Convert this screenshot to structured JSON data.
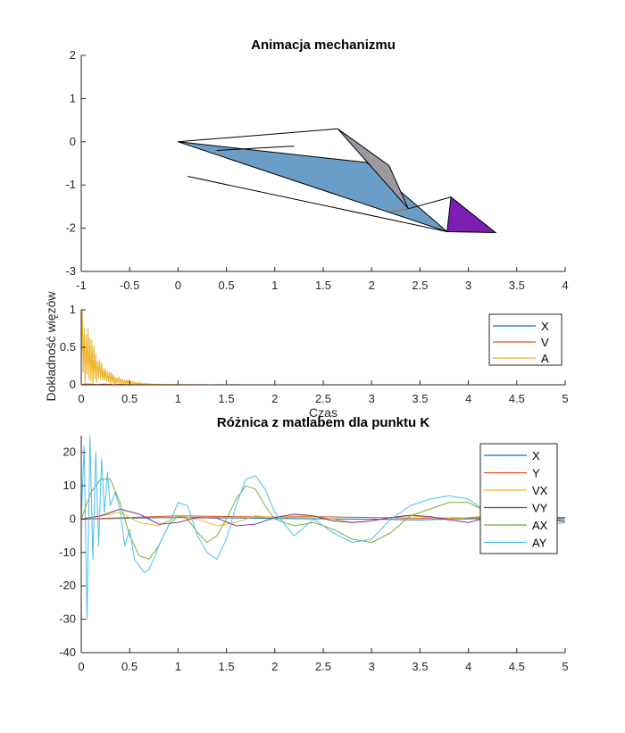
{
  "chart_data": [
    {
      "type": "diagram",
      "title": "Animacja mechanizmu",
      "xlim": [
        -1,
        4
      ],
      "ylim": [
        -3,
        2
      ],
      "xticks": [
        "-1",
        "-0.5",
        "0",
        "0.5",
        "1",
        "1.5",
        "2",
        "2.5",
        "3",
        "3.5",
        "4"
      ],
      "yticks": [
        "2",
        "1",
        "0",
        "-1",
        "-2",
        "-3"
      ],
      "polygons": [
        {
          "name": "main-link",
          "fill": "#6b9ec6",
          "points": [
            [
              0,
              0
            ],
            [
              2.78,
              -2.08
            ],
            [
              1.95,
              -0.48
            ]
          ]
        },
        {
          "name": "rocker-link",
          "fill": "#9b9aa0",
          "points": [
            [
              1.65,
              0.3
            ],
            [
              2.18,
              -0.55
            ],
            [
              2.38,
              -1.55
            ]
          ]
        },
        {
          "name": "end-link",
          "fill": "#7e1fb3",
          "points": [
            [
              2.78,
              -2.08
            ],
            [
              2.82,
              -1.28
            ],
            [
              3.28,
              -2.1
            ]
          ]
        }
      ],
      "lines": [
        {
          "name": "coupler-upper",
          "color": "#000000",
          "points": [
            [
              0,
              0
            ],
            [
              1.65,
              0.3
            ]
          ]
        },
        {
          "name": "coupler-short",
          "color": "#000000",
          "points": [
            [
              0.4,
              -0.2
            ],
            [
              1.2,
              -0.1
            ]
          ]
        },
        {
          "name": "lower-rod",
          "color": "#000000",
          "points": [
            [
              0.1,
              -0.8
            ],
            [
              2.78,
              -2.08
            ]
          ]
        },
        {
          "name": "connector",
          "color": "#000000",
          "points": [
            [
              2.38,
              -1.55
            ],
            [
              2.82,
              -1.28
            ]
          ]
        },
        {
          "name": "orange-link",
          "color": "#d95319",
          "points": [
            [
              2.2,
              -1.62
            ],
            [
              2.38,
              -1.55
            ]
          ]
        }
      ]
    },
    {
      "type": "line",
      "title": "",
      "xlabel": "Czas",
      "ylabel": "Dokładność więzów",
      "xlim": [
        0,
        5
      ],
      "ylim": [
        0,
        1
      ],
      "xticks": [
        "0",
        "0.5",
        "1",
        "1.5",
        "2",
        "2.5",
        "3",
        "3.5",
        "4",
        "4.5",
        "5"
      ],
      "yticks": [
        "1",
        "0.5",
        "0"
      ],
      "legend_position": "top-right",
      "series": [
        {
          "name": "X",
          "color": "#0072bd",
          "profile": {
            "amp": 0.002,
            "decay": 1.5,
            "freq": 3,
            "noise": 0.0
          }
        },
        {
          "name": "V",
          "color": "#d95319",
          "profile": {
            "amp": 0.01,
            "decay": 1.5,
            "freq": 3,
            "noise": 0.005
          }
        },
        {
          "name": "A",
          "color": "#edb120",
          "profile": {
            "amp": 0.85,
            "decay": 6.0,
            "freq": 25,
            "noise": 0.3
          }
        }
      ]
    },
    {
      "type": "line",
      "title": "Różnica z matlabem dla punktu K",
      "xlabel": "",
      "ylabel": "",
      "xlim": [
        0,
        5
      ],
      "ylim": [
        -40,
        25
      ],
      "xticks": [
        "0",
        "0.5",
        "1",
        "1.5",
        "2",
        "2.5",
        "3",
        "3.5",
        "4",
        "4.5",
        "5"
      ],
      "yticks": [
        "20",
        "10",
        "0",
        "-10",
        "-20",
        "-30",
        "-40"
      ],
      "legend_position": "top-right",
      "series": [
        {
          "name": "X",
          "color": "#0072bd",
          "t": [
            0,
            0.5,
            1,
            1.5,
            2,
            2.5,
            3,
            3.5,
            4,
            4.5,
            5
          ],
          "v": [
            0,
            0.3,
            0.5,
            0.4,
            0.2,
            0.1,
            0,
            -0.2,
            0.1,
            0.3,
            0.2
          ]
        },
        {
          "name": "Y",
          "color": "#d95319",
          "t": [
            0,
            0.5,
            1,
            1.5,
            2,
            2.5,
            3,
            3.5,
            4,
            4.5,
            5
          ],
          "v": [
            0,
            0.5,
            1,
            0.8,
            0.6,
            0.7,
            0.5,
            0.3,
            0.4,
            0.6,
            0.5
          ]
        },
        {
          "name": "VX",
          "color": "#edb120",
          "t": [
            0,
            0.2,
            0.4,
            0.6,
            0.8,
            1.0,
            1.2,
            1.4,
            1.6,
            1.8,
            2.0,
            2.2,
            2.4,
            2.6,
            2.8,
            3.0,
            3.2,
            3.4,
            3.6,
            3.8,
            4.0,
            4.2,
            4.4,
            4.6,
            4.8,
            5.0
          ],
          "v": [
            0,
            1,
            2,
            -1,
            -2,
            1,
            0,
            -2,
            -1,
            1,
            0.5,
            1,
            0.8,
            0,
            -1,
            -0.5,
            0.5,
            1,
            0.5,
            0,
            0.5,
            1,
            0.5,
            0,
            -0.5,
            0
          ]
        },
        {
          "name": "VY",
          "color": "#7e2f8e",
          "t": [
            0,
            0.2,
            0.4,
            0.6,
            0.8,
            1.0,
            1.2,
            1.4,
            1.6,
            1.8,
            2.0,
            2.2,
            2.4,
            2.6,
            2.8,
            3.0,
            3.2,
            3.4,
            3.6,
            3.8,
            4.0,
            4.2,
            4.4,
            4.6,
            4.8,
            5.0
          ],
          "v": [
            0,
            1,
            3,
            1.5,
            -1.5,
            -1,
            0.5,
            0.3,
            -2,
            -1.5,
            0.5,
            1.5,
            1,
            -0.5,
            -1,
            -0.5,
            0.5,
            1.2,
            0.8,
            -0.2,
            -1,
            0.5,
            1,
            0.5,
            0,
            -0.5
          ]
        },
        {
          "name": "AX",
          "color": "#77ac30",
          "t": [
            0,
            0.1,
            0.2,
            0.3,
            0.4,
            0.5,
            0.6,
            0.7,
            0.8,
            0.9,
            1.0,
            1.1,
            1.2,
            1.3,
            1.4,
            1.5,
            1.6,
            1.7,
            1.8,
            1.9,
            2.0,
            2.2,
            2.4,
            2.6,
            2.8,
            3.0,
            3.2,
            3.4,
            3.6,
            3.8,
            4.0,
            4.2,
            4.4,
            4.6,
            4.8,
            5.0
          ],
          "v": [
            0,
            8,
            12,
            12,
            5,
            -5,
            -11,
            -12,
            -8,
            -2,
            1,
            0,
            -4,
            -7,
            -5,
            0,
            6,
            10,
            9,
            4,
            0,
            -2,
            -1,
            -3,
            -6,
            -7,
            -4,
            1,
            3,
            5,
            5,
            2,
            -1,
            -1,
            0,
            -1
          ]
        },
        {
          "name": "AY",
          "color": "#4dbeee",
          "t": [
            0,
            0.03,
            0.06,
            0.09,
            0.12,
            0.15,
            0.18,
            0.21,
            0.24,
            0.27,
            0.3,
            0.35,
            0.4,
            0.45,
            0.5,
            0.55,
            0.6,
            0.65,
            0.7,
            0.75,
            0.8,
            0.9,
            1.0,
            1.1,
            1.2,
            1.3,
            1.4,
            1.5,
            1.6,
            1.7,
            1.8,
            1.9,
            2.0,
            2.2,
            2.4,
            2.6,
            2.8,
            3.0,
            3.2,
            3.4,
            3.6,
            3.8,
            4.0,
            4.2,
            4.4,
            4.6,
            4.8,
            5.0
          ],
          "v": [
            0,
            22,
            -30,
            25,
            -12,
            20,
            -8,
            18,
            2,
            14,
            4,
            8,
            3,
            -8,
            -3,
            -12,
            -14,
            -16,
            -15,
            -12,
            -8,
            -2,
            5,
            4,
            -5,
            -10,
            -12,
            -6,
            4,
            12,
            13,
            9,
            2,
            -5,
            0,
            -4,
            -7,
            -6,
            0,
            4,
            6,
            7,
            6,
            2,
            -1,
            0,
            -2,
            -1
          ]
        }
      ]
    }
  ]
}
